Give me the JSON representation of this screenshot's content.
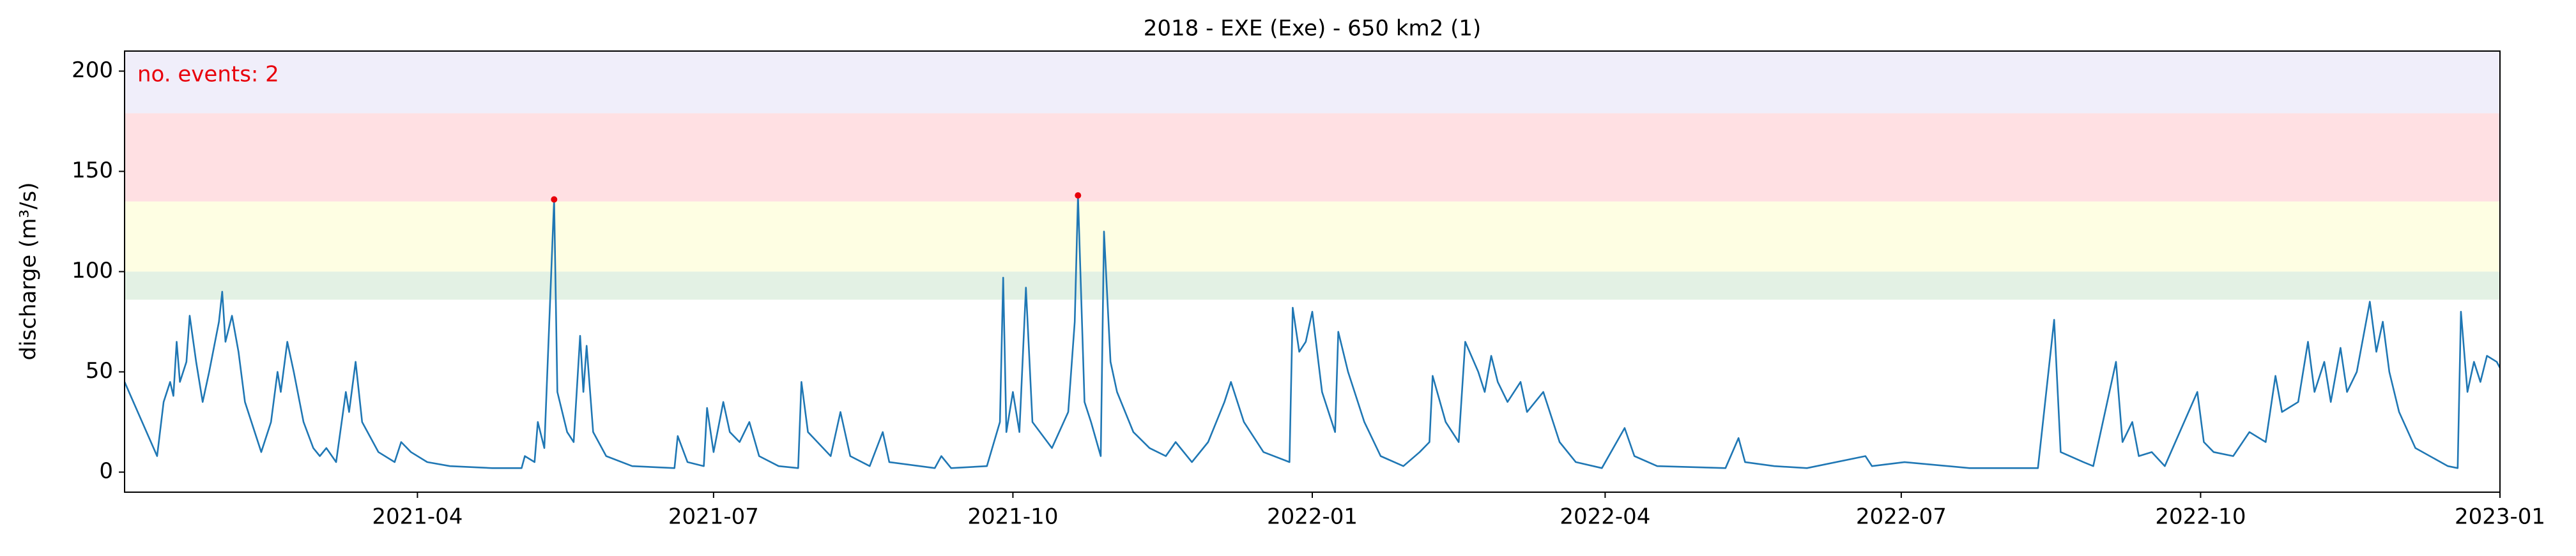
{
  "chart_data": {
    "type": "line",
    "title": "2018 - EXE (Exe) - 650 km2 (1)",
    "y_label": "discharge (m³/s)",
    "annotation": "no. events: 2",
    "annotation_color": "#e8000b",
    "color": "#1f77b4",
    "xlim": [
      0,
      730
    ],
    "xticks": [
      {
        "value": 90,
        "label": "2021-04"
      },
      {
        "value": 181,
        "label": "2021-07"
      },
      {
        "value": 273,
        "label": "2021-10"
      },
      {
        "value": 365,
        "label": "2022-01"
      },
      {
        "value": 455,
        "label": "2022-04"
      },
      {
        "value": 546,
        "label": "2022-07"
      },
      {
        "value": 638,
        "label": "2022-10"
      },
      {
        "value": 730,
        "label": "2023-01"
      }
    ],
    "ylim": [
      -10,
      210
    ],
    "yticks": [
      0,
      50,
      100,
      150,
      200
    ],
    "bands": [
      {
        "from": 86,
        "to": 100,
        "color": "#e3f1e4"
      },
      {
        "from": 100,
        "to": 135,
        "color": "#fefee3"
      },
      {
        "from": 135,
        "to": 179,
        "color": "#ffe0e3"
      },
      {
        "from": 179,
        "to": 210,
        "color": "#f0eefa"
      }
    ],
    "x": [
      0,
      10,
      12,
      14,
      15,
      16,
      17,
      19,
      20,
      22,
      24,
      26,
      29,
      30,
      31,
      33,
      35,
      37,
      40,
      42,
      45,
      47,
      48,
      50,
      52,
      55,
      58,
      60,
      62,
      65,
      68,
      69,
      71,
      73,
      78,
      83,
      85,
      88,
      93,
      100,
      113,
      122,
      123,
      126,
      127,
      129,
      132,
      133,
      136,
      138,
      140,
      141,
      142,
      144,
      148,
      156,
      169,
      170,
      173,
      178,
      179,
      181,
      184,
      186,
      189,
      192,
      195,
      201,
      207,
      208,
      210,
      217,
      220,
      223,
      229,
      233,
      235,
      249,
      251,
      254,
      265,
      269,
      270,
      271,
      273,
      275,
      277,
      279,
      285,
      290,
      292,
      293,
      295,
      297,
      300,
      301,
      303,
      305,
      310,
      315,
      320,
      323,
      328,
      333,
      338,
      340,
      344,
      350,
      358,
      359,
      361,
      363,
      365,
      368,
      372,
      373,
      376,
      381,
      386,
      393,
      398,
      401,
      402,
      406,
      410,
      412,
      416,
      418,
      420,
      422,
      425,
      429,
      431,
      436,
      441,
      446,
      454,
      461,
      464,
      471,
      492,
      496,
      498,
      507,
      517,
      535,
      537,
      547,
      567,
      588,
      593,
      595,
      602,
      605,
      612,
      614,
      617,
      619,
      623,
      627,
      637,
      639,
      642,
      648,
      653,
      658,
      661,
      663,
      668,
      671,
      673,
      676,
      678,
      681,
      683,
      686,
      690,
      692,
      694,
      696,
      699,
      704,
      714,
      717,
      718,
      720,
      722,
      724,
      726,
      729,
      730
    ],
    "values": [
      45,
      8,
      35,
      45,
      38,
      65,
      45,
      55,
      78,
      55,
      35,
      50,
      75,
      90,
      65,
      78,
      60,
      35,
      20,
      10,
      25,
      50,
      40,
      65,
      50,
      25,
      12,
      8,
      12,
      5,
      40,
      30,
      55,
      25,
      10,
      5,
      15,
      10,
      5,
      3,
      2,
      2,
      8,
      5,
      25,
      12,
      136,
      40,
      20,
      15,
      68,
      40,
      63,
      20,
      8,
      3,
      2,
      18,
      5,
      3,
      32,
      10,
      35,
      20,
      15,
      25,
      8,
      3,
      2,
      45,
      20,
      8,
      30,
      8,
      3,
      20,
      5,
      2,
      8,
      2,
      3,
      25,
      97,
      20,
      40,
      20,
      92,
      25,
      12,
      30,
      75,
      138,
      35,
      25,
      8,
      120,
      55,
      40,
      20,
      12,
      8,
      15,
      5,
      15,
      35,
      45,
      25,
      10,
      5,
      82,
      60,
      65,
      80,
      40,
      20,
      70,
      50,
      25,
      8,
      3,
      10,
      15,
      48,
      25,
      15,
      65,
      50,
      40,
      58,
      45,
      35,
      45,
      30,
      40,
      15,
      5,
      2,
      22,
      8,
      3,
      2,
      17,
      5,
      3,
      2,
      8,
      3,
      5,
      2,
      2,
      76,
      10,
      5,
      3,
      55,
      15,
      25,
      8,
      10,
      3,
      40,
      15,
      10,
      8,
      20,
      15,
      48,
      30,
      35,
      65,
      40,
      55,
      35,
      62,
      40,
      50,
      85,
      60,
      75,
      50,
      30,
      12,
      3,
      2,
      80,
      40,
      55,
      45,
      58,
      55,
      52
    ],
    "events": {
      "x": [
        132,
        293
      ],
      "values": [
        136,
        138
      ],
      "color": "#e8000b"
    }
  }
}
